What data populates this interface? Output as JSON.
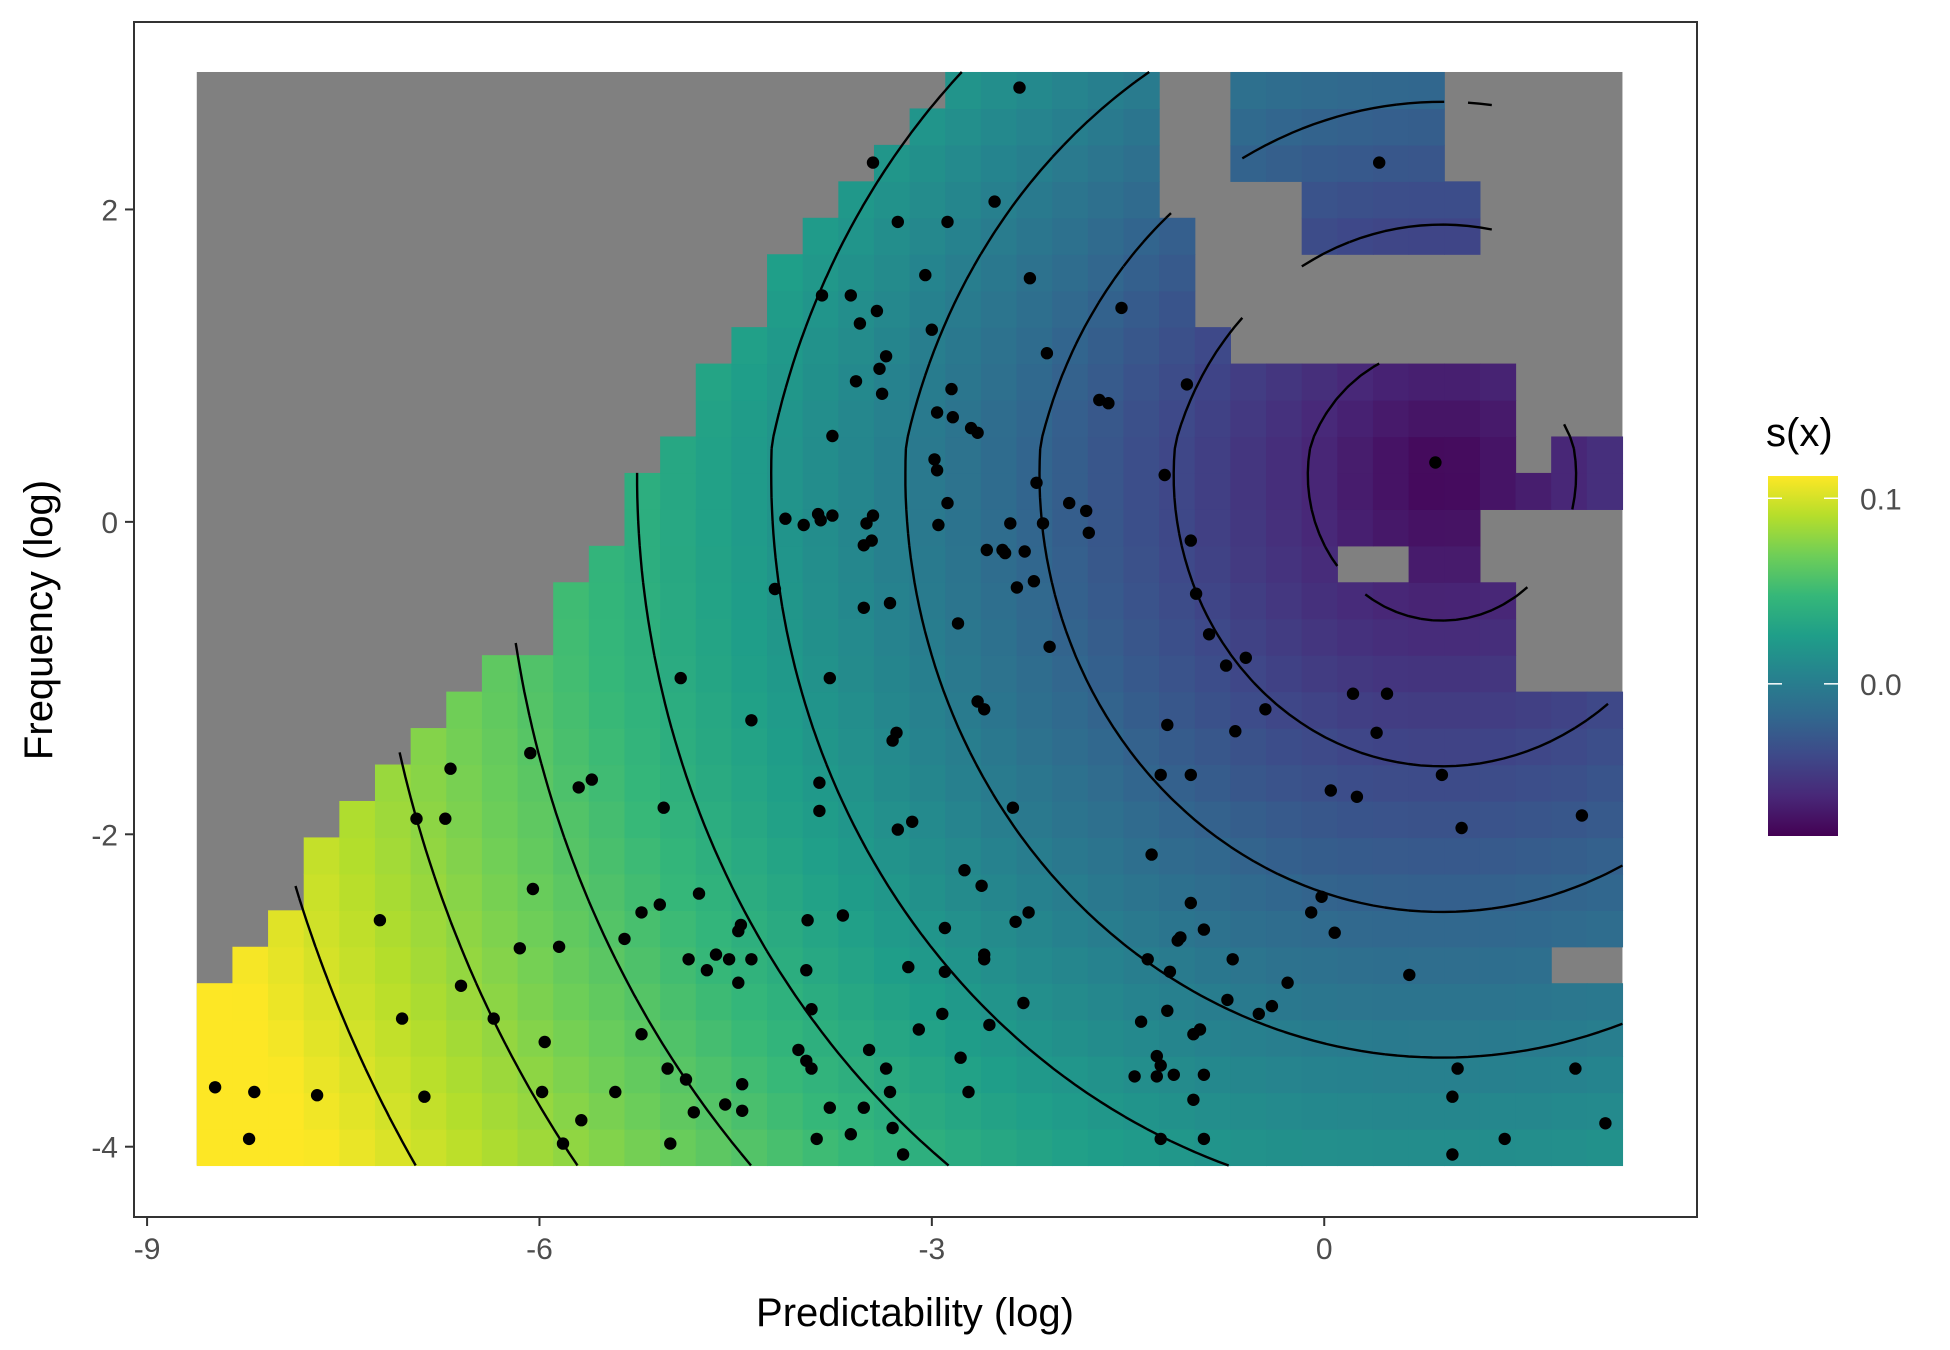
{
  "chart_data": {
    "type": "heatmap",
    "title": "",
    "xlabel": "Predictability (log)",
    "ylabel": "Frequency (log)",
    "xlim": [
      -9.1,
      2.85
    ],
    "ylim": [
      -4.45,
      3.2
    ],
    "x_ticks": [
      -9,
      -6,
      -3,
      0
    ],
    "x_tick_labels": [
      "-9",
      "-6",
      "-3",
      "0"
    ],
    "y_ticks": [
      -4,
      -2,
      0,
      2
    ],
    "y_tick_labels": [
      "-4",
      "-2",
      "0",
      "2"
    ],
    "grid": false,
    "heatmap": {
      "x_range": [
        -8.62,
        2.28
      ],
      "y_range": [
        -4.12,
        2.88
      ],
      "missing_color": "#808080",
      "value_range": [
        -0.082,
        0.112
      ]
    },
    "colorbar": {
      "title": "s(x)",
      "position": "right",
      "ticks": [
        0.0,
        0.1
      ],
      "tick_labels": [
        "0.0",
        "0.1"
      ],
      "colors": [
        "#440154",
        "#482878",
        "#3e4989",
        "#31688e",
        "#26828e",
        "#1f9e89",
        "#35b779",
        "#6ece58",
        "#b5de2b",
        "#fde725"
      ]
    },
    "contour_levels": [
      -0.06,
      -0.04,
      -0.02,
      0.0,
      0.02,
      0.04,
      0.06,
      0.08,
      0.1
    ],
    "points": [
      [
        -8.48,
        -3.62
      ],
      [
        -8.22,
        -3.95
      ],
      [
        -8.18,
        -3.65
      ],
      [
        -7.7,
        -3.67
      ],
      [
        -7.22,
        -2.55
      ],
      [
        -7.05,
        -3.18
      ],
      [
        -6.88,
        -3.68
      ],
      [
        -6.94,
        -1.9
      ],
      [
        -6.72,
        -1.9
      ],
      [
        -6.68,
        -1.58
      ],
      [
        -6.6,
        -2.97
      ],
      [
        -6.35,
        -3.18
      ],
      [
        -6.15,
        -2.73
      ],
      [
        -6.07,
        -1.48
      ],
      [
        -6.05,
        -2.35
      ],
      [
        -5.96,
        -3.33
      ],
      [
        -5.98,
        -3.65
      ],
      [
        -5.85,
        -2.72
      ],
      [
        -5.82,
        -3.98
      ],
      [
        -5.7,
        -1.7
      ],
      [
        -5.6,
        -1.65
      ],
      [
        -5.68,
        -3.83
      ],
      [
        -5.42,
        -3.65
      ],
      [
        -5.35,
        -2.67
      ],
      [
        -5.22,
        -2.5
      ],
      [
        -5.22,
        -3.28
      ],
      [
        -5.08,
        -2.45
      ],
      [
        -5.05,
        -1.83
      ],
      [
        -5.02,
        -3.5
      ],
      [
        -5.0,
        -3.98
      ],
      [
        -4.92,
        -1.0
      ],
      [
        -4.88,
        -3.57
      ],
      [
        -4.86,
        -2.8
      ],
      [
        -4.82,
        -3.78
      ],
      [
        -4.78,
        -2.38
      ],
      [
        -4.72,
        -2.87
      ],
      [
        -4.65,
        -2.77
      ],
      [
        -4.58,
        -3.73
      ],
      [
        -4.55,
        -2.8
      ],
      [
        -4.45,
        -3.6
      ],
      [
        -4.45,
        -3.77
      ],
      [
        -4.46,
        -2.58
      ],
      [
        -4.48,
        -2.62
      ],
      [
        -4.48,
        -2.95
      ],
      [
        -4.38,
        -2.8
      ],
      [
        -4.38,
        -1.27
      ],
      [
        -4.2,
        -0.43
      ],
      [
        -4.12,
        0.02
      ],
      [
        -3.98,
        -0.02
      ],
      [
        -4.02,
        -3.38
      ],
      [
        -3.95,
        -2.55
      ],
      [
        -3.96,
        -2.87
      ],
      [
        -3.96,
        -3.45
      ],
      [
        -3.92,
        -3.12
      ],
      [
        -3.92,
        -3.5
      ],
      [
        -3.88,
        -3.95
      ],
      [
        -3.87,
        0.05
      ],
      [
        -3.86,
        -1.67
      ],
      [
        -3.86,
        -1.85
      ],
      [
        -3.84,
        1.45
      ],
      [
        -3.85,
        0.01
      ],
      [
        -3.76,
        0.04
      ],
      [
        -3.78,
        -1.0
      ],
      [
        -3.78,
        -3.75
      ],
      [
        -3.76,
        0.55
      ],
      [
        -3.68,
        -2.52
      ],
      [
        -3.62,
        -3.92
      ],
      [
        -3.62,
        1.45
      ],
      [
        -3.58,
        0.9
      ],
      [
        -3.55,
        1.27
      ],
      [
        -3.52,
        -0.55
      ],
      [
        -3.52,
        -0.15
      ],
      [
        -3.52,
        -3.75
      ],
      [
        -3.48,
        -3.38
      ],
      [
        -3.5,
        -0.01
      ],
      [
        -3.46,
        -0.12
      ],
      [
        -3.45,
        0.04
      ],
      [
        -3.45,
        2.3
      ],
      [
        -3.42,
        1.35
      ],
      [
        -3.4,
        0.98
      ],
      [
        -3.38,
        0.82
      ],
      [
        -3.35,
        1.06
      ],
      [
        -3.35,
        -3.5
      ],
      [
        -3.32,
        -3.65
      ],
      [
        -3.32,
        -0.52
      ],
      [
        -3.3,
        -1.4
      ],
      [
        -3.3,
        -3.88
      ],
      [
        -3.27,
        -1.35
      ],
      [
        -3.26,
        1.92
      ],
      [
        -3.26,
        -1.97
      ],
      [
        -3.22,
        -4.05
      ],
      [
        -3.18,
        -2.85
      ],
      [
        -3.15,
        -1.92
      ],
      [
        -3.1,
        -3.25
      ],
      [
        -3.05,
        1.58
      ],
      [
        -3.0,
        1.23
      ],
      [
        -2.98,
        0.4
      ],
      [
        -2.95,
        -0.02
      ],
      [
        -2.96,
        0.7
      ],
      [
        -2.96,
        0.33
      ],
      [
        -2.92,
        -3.15
      ],
      [
        -2.9,
        -2.88
      ],
      [
        -2.9,
        -2.6
      ],
      [
        -2.88,
        1.92
      ],
      [
        -2.88,
        0.12
      ],
      [
        -2.85,
        0.85
      ],
      [
        -2.84,
        0.67
      ],
      [
        -2.8,
        -0.65
      ],
      [
        -2.78,
        -3.43
      ],
      [
        -2.75,
        -2.23
      ],
      [
        -2.72,
        -3.65
      ],
      [
        -2.7,
        0.6
      ],
      [
        -2.65,
        0.57
      ],
      [
        -2.65,
        -1.15
      ],
      [
        -2.62,
        -2.33
      ],
      [
        -2.6,
        -1.2
      ],
      [
        -2.6,
        -2.77
      ],
      [
        -2.6,
        -2.8
      ],
      [
        -2.58,
        -0.18
      ],
      [
        -2.56,
        -3.22
      ],
      [
        -2.52,
        2.05
      ],
      [
        -2.46,
        -0.18
      ],
      [
        -2.44,
        -0.2
      ],
      [
        -2.4,
        -0.01
      ],
      [
        -2.38,
        -1.83
      ],
      [
        -2.36,
        -2.56
      ],
      [
        -2.35,
        -0.42
      ],
      [
        -2.33,
        2.78
      ],
      [
        -2.3,
        -3.08
      ],
      [
        -2.29,
        -0.19
      ],
      [
        -2.26,
        -2.5
      ],
      [
        -2.25,
        1.56
      ],
      [
        -2.22,
        -0.38
      ],
      [
        -2.2,
        0.25
      ],
      [
        -2.15,
        -0.01
      ],
      [
        -2.12,
        1.08
      ],
      [
        -2.1,
        -0.8
      ],
      [
        -1.95,
        0.12
      ],
      [
        -1.82,
        0.07
      ],
      [
        -1.8,
        -0.07
      ],
      [
        -1.72,
        0.78
      ],
      [
        -1.65,
        0.76
      ],
      [
        -1.55,
        1.37
      ],
      [
        -1.45,
        -3.55
      ],
      [
        -1.4,
        -3.2
      ],
      [
        -1.35,
        -2.8
      ],
      [
        -1.32,
        -2.13
      ],
      [
        -1.28,
        -3.42
      ],
      [
        -1.28,
        -3.55
      ],
      [
        -1.25,
        -1.62
      ],
      [
        -1.25,
        -3.95
      ],
      [
        -1.25,
        -3.48
      ],
      [
        -1.22,
        0.3
      ],
      [
        -1.2,
        -1.3
      ],
      [
        -1.2,
        -3.13
      ],
      [
        -1.18,
        -2.88
      ],
      [
        -1.15,
        -3.54
      ],
      [
        -1.12,
        -2.68
      ],
      [
        -1.1,
        -2.66
      ],
      [
        -1.05,
        0.88
      ],
      [
        -1.02,
        -1.62
      ],
      [
        -1.02,
        -2.44
      ],
      [
        -1.0,
        -3.7
      ],
      [
        -1.0,
        -3.28
      ],
      [
        -1.02,
        -0.12
      ],
      [
        -0.98,
        -0.46
      ],
      [
        -0.95,
        -3.25
      ],
      [
        -0.92,
        -3.54
      ],
      [
        -0.92,
        -2.61
      ],
      [
        -0.92,
        -3.95
      ],
      [
        -0.88,
        -0.72
      ],
      [
        -0.75,
        -0.92
      ],
      [
        -0.74,
        -3.06
      ],
      [
        -0.7,
        -2.8
      ],
      [
        -0.68,
        -1.34
      ],
      [
        -0.6,
        -0.87
      ],
      [
        -0.5,
        -3.15
      ],
      [
        -0.45,
        -1.2
      ],
      [
        -0.4,
        -3.1
      ],
      [
        -0.28,
        -2.95
      ],
      [
        -0.1,
        -2.5
      ],
      [
        -0.02,
        -2.4
      ],
      [
        0.05,
        -1.72
      ],
      [
        0.08,
        -2.63
      ],
      [
        0.22,
        -1.1
      ],
      [
        0.25,
        -1.76
      ],
      [
        0.4,
        -1.35
      ],
      [
        0.42,
        2.3
      ],
      [
        0.48,
        -1.1
      ],
      [
        0.65,
        -2.9
      ],
      [
        0.85,
        0.38
      ],
      [
        0.9,
        -1.62
      ],
      [
        0.98,
        -3.68
      ],
      [
        0.98,
        -4.05
      ],
      [
        1.02,
        -3.5
      ],
      [
        1.05,
        -1.96
      ],
      [
        1.38,
        -3.95
      ],
      [
        1.92,
        -3.5
      ],
      [
        1.97,
        -1.88
      ],
      [
        2.15,
        -3.85
      ]
    ]
  }
}
